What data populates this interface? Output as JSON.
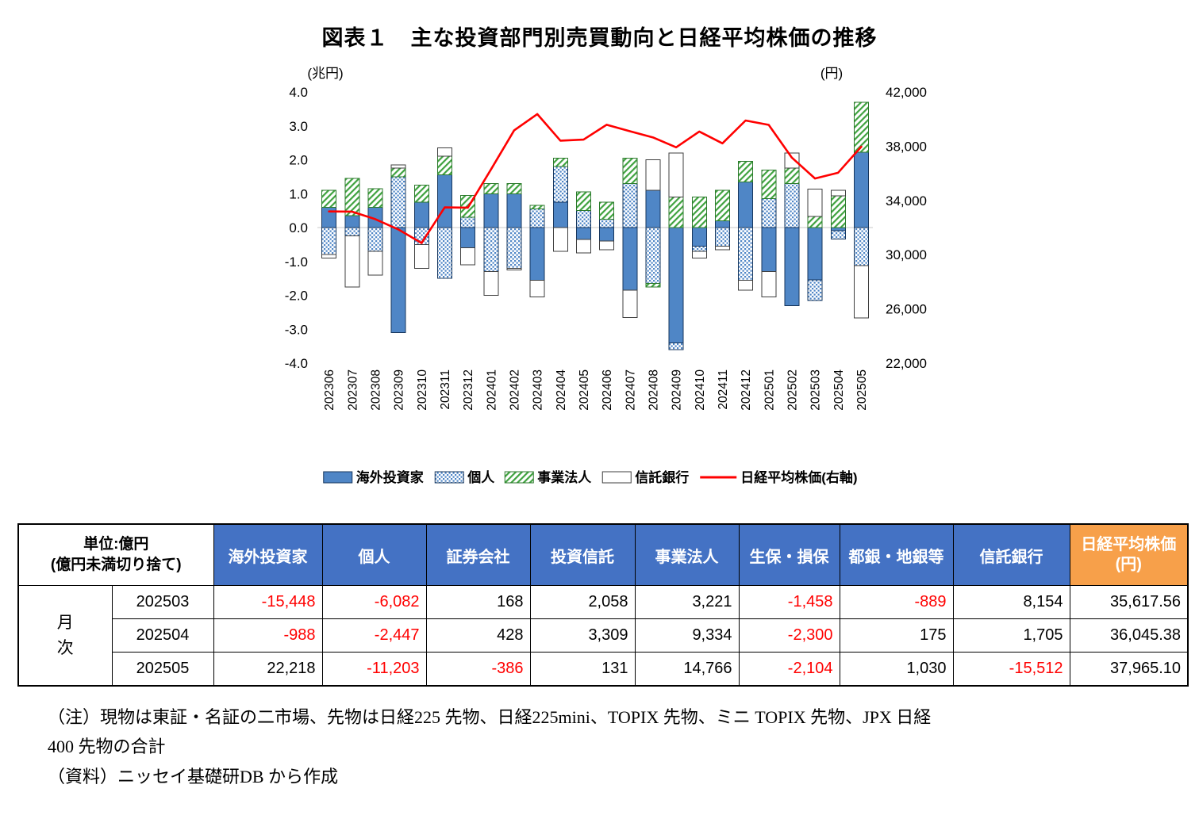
{
  "title": "図表１　主な投資部門別売買動向と日経平均株価の推移",
  "chart_data": {
    "type": "combo_stacked_bar_line",
    "categories": [
      "202306",
      "202307",
      "202308",
      "202309",
      "202310",
      "202311",
      "202312",
      "202401",
      "202402",
      "202403",
      "202404",
      "202405",
      "202406",
      "202407",
      "202408",
      "202409",
      "202410",
      "202411",
      "202412",
      "202501",
      "202502",
      "202503",
      "202504",
      "202505"
    ],
    "bar_series": [
      {
        "name": "海外投資家",
        "style": "solid",
        "values": [
          0.6,
          0.35,
          0.6,
          -3.1,
          0.75,
          1.55,
          -0.6,
          1.0,
          1.0,
          -1.55,
          0.75,
          -0.35,
          -0.4,
          -1.85,
          1.1,
          -3.4,
          -0.55,
          0.2,
          1.35,
          -1.3,
          -2.3,
          -1.5448,
          -0.0988,
          2.2218
        ]
      },
      {
        "name": "個人",
        "style": "dots",
        "values": [
          -0.8,
          -0.25,
          -0.7,
          1.5,
          -0.5,
          -1.5,
          0.3,
          -1.3,
          -1.2,
          0.55,
          1.05,
          0.5,
          0.25,
          1.3,
          -1.65,
          -0.2,
          -0.15,
          -0.55,
          -1.55,
          0.85,
          1.3,
          -0.6082,
          -0.2447,
          -1.1203
        ]
      },
      {
        "name": "事業法人",
        "style": "hatch",
        "values": [
          0.5,
          1.1,
          0.55,
          0.25,
          0.5,
          0.55,
          0.65,
          0.3,
          0.3,
          0.1,
          0.25,
          0.55,
          0.5,
          0.75,
          -0.1,
          0.9,
          0.9,
          0.9,
          0.6,
          0.85,
          0.45,
          0.3221,
          0.9334,
          1.4766
        ]
      },
      {
        "name": "信託銀行",
        "style": "white",
        "values": [
          -0.1,
          -1.5,
          -0.7,
          0.1,
          -0.7,
          0.25,
          -0.5,
          -0.7,
          -0.05,
          -0.5,
          -0.7,
          -0.4,
          -0.25,
          -0.8,
          0.9,
          1.3,
          -0.2,
          -0.1,
          -0.3,
          -0.75,
          0.45,
          0.8154,
          0.1705,
          -1.5512
        ]
      }
    ],
    "line_series": {
      "name": "日経平均株価(右軸)",
      "values": [
        33189,
        33172,
        32619,
        31858,
        30859,
        33487,
        33464,
        36287,
        39166,
        40369,
        38406,
        38488,
        39583,
        39102,
        38648,
        37920,
        39081,
        38208,
        39895,
        39572,
        37156,
        35617.56,
        36045.38,
        37965.1
      ]
    },
    "left_axis": {
      "label": "(兆円)",
      "min": -4,
      "max": 4,
      "step": 1
    },
    "right_axis": {
      "label": "(円)",
      "min": 22000,
      "max": 42000,
      "step": 4000
    },
    "grid": "zero-line-only",
    "legend_position": "bottom"
  },
  "table": {
    "unit_label_line1": "単位:億円",
    "unit_label_line2": "(億円未満切り捨て)",
    "row_group_label": "月次",
    "columns": [
      "海外投資家",
      "個人",
      "証券会社",
      "投資信託",
      "事業法人",
      "生保・損保",
      "都銀・地銀等",
      "信託銀行"
    ],
    "last_column_line1": "日経平均株価",
    "last_column_line2": "(円)",
    "rows": [
      {
        "period": "202503",
        "values": [
          "-15,448",
          "-6,082",
          "168",
          "2,058",
          "3,221",
          "-1,458",
          "-889",
          "8,154"
        ],
        "nikkei": "35,617.56"
      },
      {
        "period": "202504",
        "values": [
          "-988",
          "-2,447",
          "428",
          "3,309",
          "9,334",
          "-2,300",
          "175",
          "1,705"
        ],
        "nikkei": "36,045.38"
      },
      {
        "period": "202505",
        "values": [
          "22,218",
          "-11,203",
          "-386",
          "131",
          "14,766",
          "-2,104",
          "1,030",
          "-15,512"
        ],
        "nikkei": "37,965.10"
      }
    ]
  },
  "notes": {
    "line1": "（注）現物は東証・名証の二市場、先物は日経225 先物、日経225mini、TOPIX 先物、ミニ TOPIX 先物、JPX 日経",
    "line2": "400 先物の合計",
    "source": "（資料）ニッセイ基礎研DB から作成"
  },
  "colors": {
    "bar_blue": "#4F86C6",
    "bar_blue_border": "#17375E",
    "dot": "#4F86C6",
    "hatch": "#3FA23F",
    "hatch_border": "#2C7A2C",
    "white_bar_border": "#3F3F3F",
    "line": "#FF0000",
    "grid": "#C9C9C9",
    "negative_text": "#FF0000",
    "header_blue": "#4472C4",
    "header_orange": "#F7A04A"
  }
}
